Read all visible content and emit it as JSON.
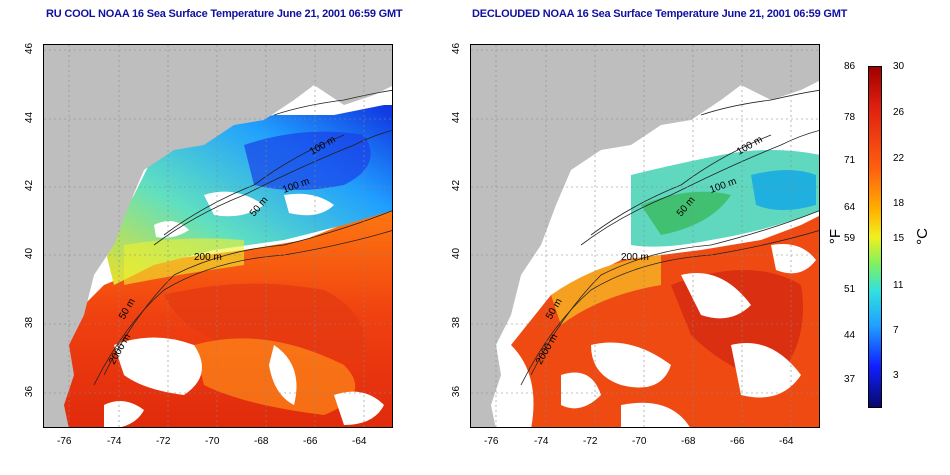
{
  "panels": [
    {
      "title": "RU COOL NOAA 16 Sea Surface Temperature June 21, 2001 06:59 GMT"
    },
    {
      "title": "DECLOUDED NOAA 16 Sea Surface Temperature June 21, 2001 06:59 GMT"
    }
  ],
  "axes": {
    "lon_ticks": [
      "-76",
      "-74",
      "-72",
      "-70",
      "-68",
      "-66",
      "-64"
    ],
    "lat_ticks": [
      "46",
      "44",
      "42",
      "40",
      "38",
      "36"
    ]
  },
  "contours": {
    "labels": [
      "100 m",
      "100 m",
      "50 m",
      "200 m",
      "50 m",
      "2000 m"
    ]
  },
  "colorbar": {
    "f_ticks": [
      "86",
      "78",
      "71",
      "64",
      "59",
      "51",
      "44",
      "37"
    ],
    "c_ticks": [
      "30",
      "26",
      "22",
      "18",
      "15",
      "11",
      "7",
      "3"
    ],
    "f_title": "°F",
    "c_title": "°C",
    "colors": [
      "#08086a",
      "#1020ff",
      "#20a0ff",
      "#30e0e0",
      "#80f060",
      "#f0f020",
      "#ffb000",
      "#ff6010",
      "#e02010",
      "#a00000"
    ]
  },
  "colors": {
    "land": "#bebebe",
    "cloud": "#ffffff",
    "title": "#1010a0"
  }
}
